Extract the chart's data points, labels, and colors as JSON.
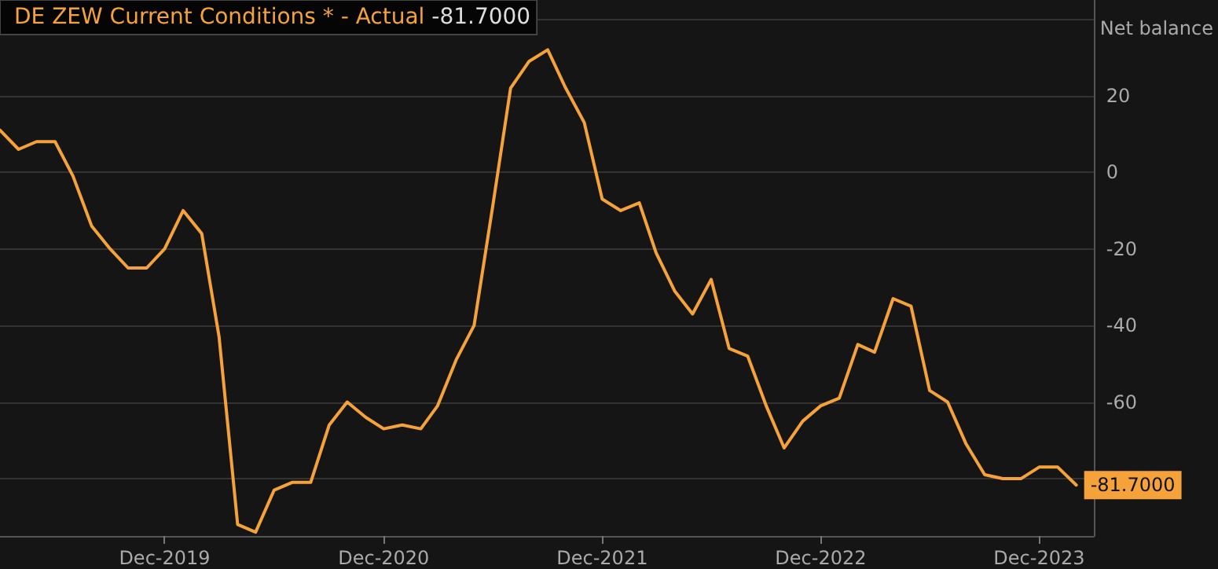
{
  "chart_data": {
    "type": "line",
    "ylabel": "Net balance",
    "x": [
      "2019-03",
      "2019-04",
      "2019-05",
      "2019-06",
      "2019-07",
      "2019-08",
      "2019-09",
      "2019-10",
      "2019-11",
      "2019-12",
      "2020-01",
      "2020-02",
      "2020-03",
      "2020-04",
      "2020-05",
      "2020-06",
      "2020-07",
      "2020-08",
      "2020-09",
      "2020-10",
      "2020-11",
      "2020-12",
      "2021-01",
      "2021-02",
      "2021-03",
      "2021-04",
      "2021-05",
      "2021-06",
      "2021-07",
      "2021-08",
      "2021-09",
      "2021-10",
      "2021-11",
      "2021-12",
      "2022-01",
      "2022-02",
      "2022-03",
      "2022-04",
      "2022-05",
      "2022-06",
      "2022-07",
      "2022-08",
      "2022-09",
      "2022-10",
      "2022-11",
      "2022-12",
      "2023-01",
      "2023-02",
      "2023-03",
      "2023-04",
      "2023-05",
      "2023-06",
      "2023-07",
      "2023-08",
      "2023-09",
      "2023-10",
      "2023-11",
      "2023-12",
      "2024-01",
      "2024-02"
    ],
    "series": [
      {
        "name": "DE ZEW Current Conditions * - Actual",
        "color": "#f5a23a",
        "values": [
          11,
          6,
          8,
          8,
          -1,
          -14,
          -20,
          -25,
          -25,
          -20,
          -10,
          -16,
          -43,
          -92,
          -94,
          -83,
          -81,
          -81,
          -66,
          -60,
          -64,
          -67,
          -66,
          -67,
          -61,
          -49,
          -40,
          -9,
          22,
          29,
          32,
          22,
          13,
          -7,
          -10,
          -8,
          -21,
          -31,
          -37,
          -28,
          -46,
          -48,
          -61,
          -72,
          -65,
          -61,
          -59,
          -45,
          -47,
          -33,
          -35,
          -57,
          -60,
          -71,
          -79,
          -80,
          -80,
          -77,
          -77,
          -81.7
        ],
        "value_labels": [
          null,
          null,
          null,
          null,
          null,
          null,
          null,
          null,
          null,
          null,
          null,
          null,
          null,
          null,
          null,
          null,
          null,
          null,
          null,
          null,
          null,
          null,
          null,
          null,
          null,
          null,
          null,
          null,
          null,
          null,
          null,
          null,
          null,
          null,
          null,
          null,
          null,
          null,
          null,
          null,
          null,
          null,
          null,
          null,
          null,
          null,
          null,
          null,
          null,
          null,
          null,
          null,
          null,
          null,
          null,
          null,
          null,
          null,
          null,
          "-81.7000"
        ]
      }
    ],
    "xlim": [
      "2019-03",
      "2024-03"
    ],
    "xticks": [
      {
        "value": "2019-12",
        "label": "Dec-2019"
      },
      {
        "value": "2020-12",
        "label": "Dec-2020"
      },
      {
        "value": "2021-12",
        "label": "Dec-2021"
      },
      {
        "value": "2022-12",
        "label": "Dec-2022"
      },
      {
        "value": "2023-12",
        "label": "Dec-2023"
      }
    ],
    "ylim": [
      -95,
      45
    ],
    "yticks": [
      {
        "value": -80,
        "label": null
      },
      -60,
      -40,
      -20,
      0,
      20,
      {
        "value": 40,
        "label": null
      }
    ],
    "grid": "y",
    "legend": "top left",
    "marker": "none",
    "line_style": "solid"
  }
}
